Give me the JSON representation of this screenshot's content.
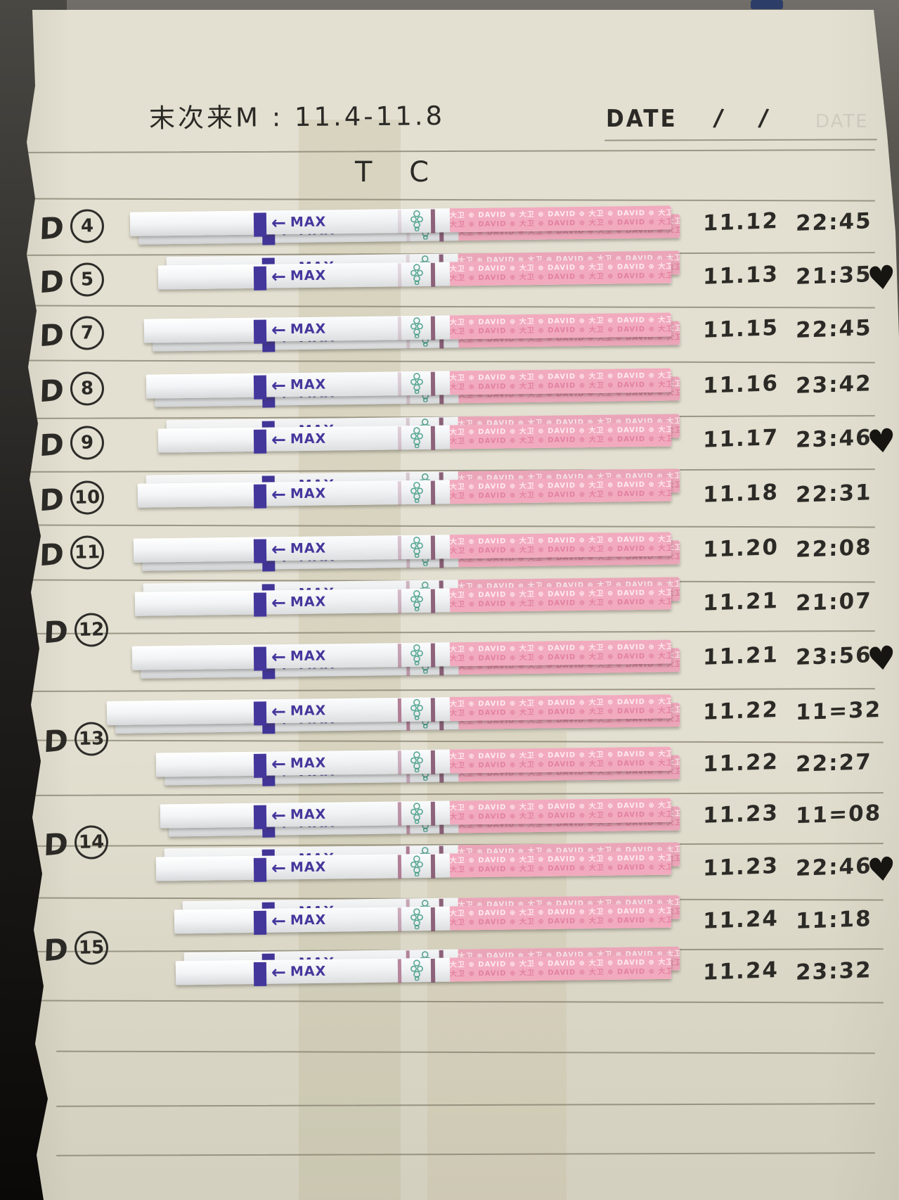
{
  "page": {
    "title": "末次来M : 11.4-11.8",
    "date_label": "DATE",
    "date_slash": "/",
    "date_ghost": "DATE",
    "section_title": "T C",
    "day_letter": "D"
  },
  "strip": {
    "max_label": "MAX",
    "arrow_icon": "←",
    "brand_pattern": "大卫 ⊕ DAVID ⊕ 大卫 ⊕ DAVID ⊕ 大卫 ⊕ DAVID ⊕ 大卫 ⊕ DAVID ⊕ 大卫 ⊕ DAVID",
    "logo_icon": "green-knot-icon",
    "heart_icon": "♥"
  },
  "colors": {
    "paper": "#e3e0d1",
    "rule_line": "#87816f",
    "ink": "#2c2a26",
    "strip_purple": "#43379c",
    "pad_pink": "#f2aabe",
    "logo_green": "#2f9478",
    "test_line": "#a76a86",
    "control_line": "#7c4a66"
  },
  "rows": [
    {
      "day": {
        "num": "4",
        "on_line": false
      },
      "date": "11.12",
      "time": "22:45",
      "heart": false,
      "test_line_intensity": 0.18
    },
    {
      "day": {
        "num": "5",
        "on_line": false
      },
      "date": "11.13",
      "time": "21:35",
      "heart": true,
      "test_line_intensity": 0.22
    },
    {
      "day": {
        "num": "7",
        "on_line": false
      },
      "date": "11.15",
      "time": "22:45",
      "heart": false,
      "test_line_intensity": 0.25
    },
    {
      "day": {
        "num": "8",
        "on_line": false
      },
      "date": "11.16",
      "time": "23:42",
      "heart": false,
      "test_line_intensity": 0.28
    },
    {
      "day": {
        "num": "9",
        "on_line": false
      },
      "date": "11.17",
      "time": "23:46",
      "heart": true,
      "test_line_intensity": 0.3
    },
    {
      "day": {
        "num": "10",
        "on_line": false
      },
      "date": "11.18",
      "time": "22:31",
      "heart": false,
      "test_line_intensity": 0.3
    },
    {
      "day": {
        "num": "11",
        "on_line": false
      },
      "date": "11.20",
      "time": "22:08",
      "heart": false,
      "test_line_intensity": 0.38
    },
    {
      "day": null,
      "date": "11.21",
      "time": "21:07",
      "heart": false,
      "test_line_intensity": 0.45
    },
    {
      "day": {
        "num": "12",
        "on_line": true
      },
      "date": "11.21",
      "time": "23:56",
      "heart": true,
      "test_line_intensity": 0.6
    },
    {
      "day": null,
      "date": "11.22",
      "time": "11=32",
      "heart": false,
      "test_line_intensity": 0.85
    },
    {
      "day": {
        "num": "13",
        "on_line": true
      },
      "date": "11.22",
      "time": "22:27",
      "heart": false,
      "test_line_intensity": 0.5
    },
    {
      "day": null,
      "date": "11.23",
      "time": "11=08",
      "heart": false,
      "test_line_intensity": 0.7
    },
    {
      "day": {
        "num": "14",
        "on_line": true
      },
      "date": "11.23",
      "time": "22:46",
      "heart": true,
      "test_line_intensity": 0.85
    },
    {
      "day": null,
      "date": "11.24",
      "time": "11:18",
      "heart": false,
      "test_line_intensity": 0.55
    },
    {
      "day": {
        "num": "15",
        "on_line": true
      },
      "date": "11.24",
      "time": "23:32",
      "heart": false,
      "test_line_intensity": 0.8
    }
  ]
}
